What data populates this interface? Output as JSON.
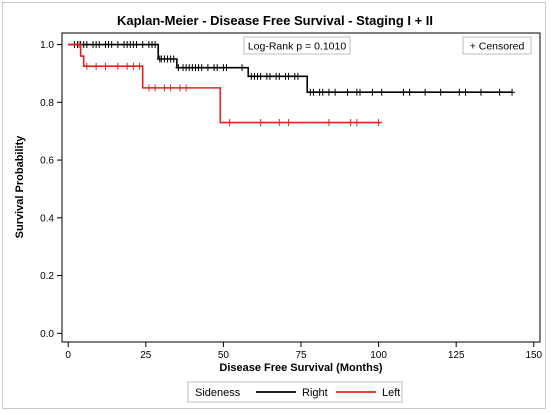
{
  "chart_data": {
    "type": "line",
    "title": "Kaplan-Meier - Disease Free Survival - Staging I + II",
    "xlabel": "Disease Free Survival (Months)",
    "ylabel": "Survival Probability",
    "xlim": [
      -2,
      152
    ],
    "ylim": [
      -0.03,
      1.04
    ],
    "xticks": [
      0,
      25,
      50,
      75,
      100,
      125,
      150
    ],
    "yticks": [
      0.0,
      0.2,
      0.4,
      0.6,
      0.8,
      1.0
    ],
    "xtick_labels": [
      "0",
      "25",
      "50",
      "75",
      "100",
      "125",
      "150"
    ],
    "ytick_labels": [
      "0.0",
      "0.2",
      "0.4",
      "0.6",
      "0.8",
      "1.0"
    ],
    "annotation": "Log-Rank p = 0.1010",
    "censored_legend": "+ Censored",
    "legend_title": "Sideness",
    "legend_position": "bottom",
    "grid": false,
    "series": [
      {
        "name": "Right",
        "color": "#000000",
        "steps": [
          {
            "x": 0,
            "y": 1.0
          },
          {
            "x": 29,
            "y": 0.95
          },
          {
            "x": 35,
            "y": 0.92
          },
          {
            "x": 58,
            "y": 0.89
          },
          {
            "x": 77,
            "y": 0.835
          }
        ],
        "end_x": 143,
        "censored": [
          2,
          3,
          4,
          5,
          6,
          8,
          9,
          10,
          12,
          13,
          14,
          16,
          18,
          19,
          20,
          21,
          22,
          24,
          26,
          27,
          28,
          29.5,
          30,
          31,
          32,
          33,
          34,
          35.5,
          37,
          38,
          39,
          40,
          41,
          42,
          43,
          45,
          47,
          48,
          50,
          51,
          56,
          59,
          60,
          61,
          62,
          64,
          65,
          67,
          68,
          70,
          71,
          73,
          74,
          78,
          79,
          81,
          82,
          84,
          86,
          90,
          93,
          94,
          98,
          101,
          108,
          110,
          115,
          120,
          126,
          128,
          133,
          139,
          143
        ]
      },
      {
        "name": "Left",
        "color": "#e8211e",
        "steps": [
          {
            "x": 0,
            "y": 1.0
          },
          {
            "x": 4,
            "y": 0.96
          },
          {
            "x": 5,
            "y": 0.925
          },
          {
            "x": 24,
            "y": 0.85
          },
          {
            "x": 49,
            "y": 0.73
          }
        ],
        "end_x": 101,
        "censored": [
          3.5,
          6,
          9,
          12,
          16,
          19,
          21,
          23,
          26,
          28,
          31,
          33,
          36,
          38,
          52,
          62,
          68,
          71,
          84,
          91,
          93,
          100
        ]
      }
    ]
  }
}
